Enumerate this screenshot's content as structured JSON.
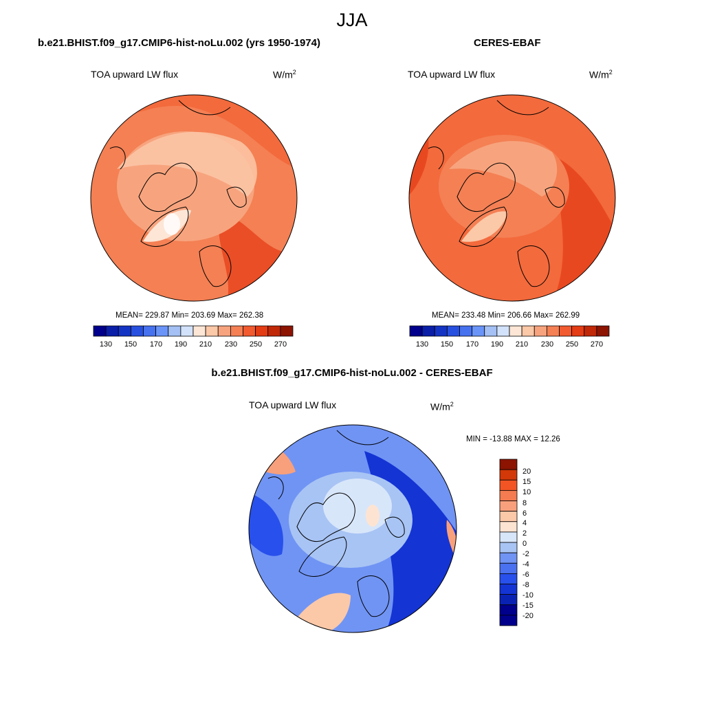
{
  "main_title": "JJA",
  "colors": {
    "abs_palette": [
      "#00008c",
      "#0a1ea8",
      "#1434c4",
      "#2850e0",
      "#4672f0",
      "#6a94f8",
      "#a4c0f4",
      "#d2e2fa",
      "#fde6d6",
      "#fbc8a8",
      "#f7a47e",
      "#f48054",
      "#f25a30",
      "#e43c14",
      "#c02808",
      "#8c1400"
    ],
    "diff_palette": [
      "#00008c",
      "#0a22b4",
      "#1434d4",
      "#2850ec",
      "#4a72f0",
      "#7094f4",
      "#a8c4f4",
      "#d8e6fa",
      "#fde4d2",
      "#fbc8a8",
      "#f8a07c",
      "#f47c50",
      "#f25424",
      "#d23808",
      "#8c1400"
    ]
  },
  "panels": [
    {
      "title": "b.e21.BHIST.f09_g17.CMIP6-hist-noLu.002 (yrs 1950-1974)",
      "variable": "TOA upward LW flux",
      "unit": "W/m",
      "unit_sup": "2",
      "stats": "MEAN= 229.87  Min= 203.69  Max= 262.38",
      "colorbar_labels": [
        "130",
        "150",
        "170",
        "190",
        "210",
        "230",
        "250",
        "270"
      ]
    },
    {
      "title": "CERES-EBAF",
      "variable": "TOA upward LW flux",
      "unit": "W/m",
      "unit_sup": "2",
      "stats": "MEAN= 233.48  Min= 206.66  Max= 262.99",
      "colorbar_labels": [
        "130",
        "150",
        "170",
        "190",
        "210",
        "230",
        "250",
        "270"
      ]
    },
    {
      "title": "b.e21.BHIST.f09_g17.CMIP6-hist-noLu.002 - CERES-EBAF",
      "variable": "TOA upward LW flux",
      "unit": "W/m",
      "unit_sup": "2",
      "stats": "MIN = -13.88 MAX =  12.26",
      "colorbar_labels": [
        "20",
        "15",
        "10",
        "8",
        "6",
        "4",
        "2",
        "0",
        "-2",
        "-4",
        "-6",
        "-8",
        "-10",
        "-15",
        "-20"
      ]
    }
  ]
}
